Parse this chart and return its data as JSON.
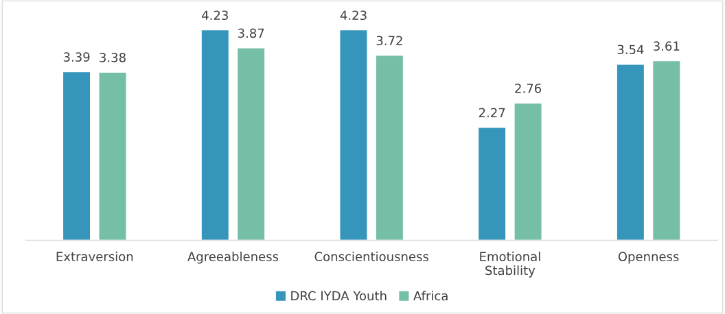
{
  "chart_data": {
    "type": "bar",
    "categories": [
      "Extraversion",
      "Agreeableness",
      "Conscientiousness",
      "Emotional\nStability",
      "Openness"
    ],
    "series": [
      {
        "name": "DRC IYDA Youth",
        "color": "#3595bb",
        "values": [
          3.39,
          4.23,
          4.23,
          2.27,
          3.54
        ]
      },
      {
        "name": "Africa",
        "color": "#76bfa7",
        "values": [
          3.38,
          3.87,
          3.72,
          2.76,
          3.61
        ]
      }
    ],
    "data_labels": true,
    "grid": false,
    "legend": "bottom",
    "tick_labels": "x"
  }
}
